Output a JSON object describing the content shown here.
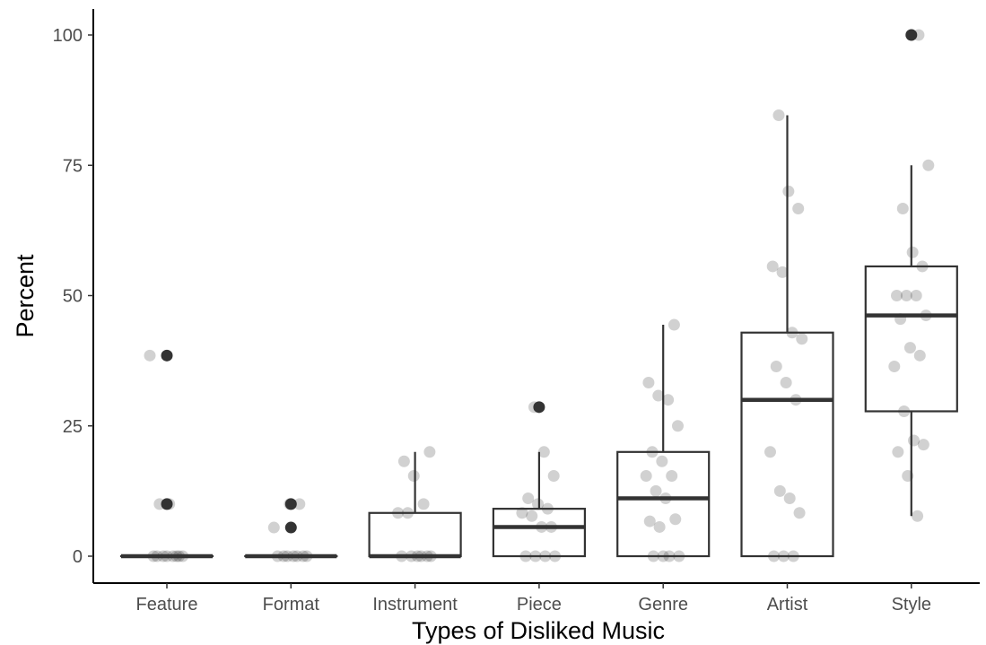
{
  "chart_data": {
    "type": "box",
    "xlabel": "Types of Disliked Music",
    "ylabel": "Percent",
    "ylim": [
      -5,
      105
    ],
    "yticks": [
      0,
      25,
      50,
      75,
      100
    ],
    "categories": [
      "Feature",
      "Format",
      "Instrument",
      "Piece",
      "Genre",
      "Artist",
      "Style"
    ],
    "grid": false,
    "boxes": [
      {
        "category": "Feature",
        "q1": 0,
        "median": 0,
        "q3": 0,
        "whisker_low": 0,
        "whisker_high": 0,
        "outliers": [
          38.5,
          10
        ]
      },
      {
        "category": "Format",
        "q1": 0,
        "median": 0,
        "q3": 0,
        "whisker_low": 0,
        "whisker_high": 0,
        "outliers": [
          10,
          5.5
        ]
      },
      {
        "category": "Instrument",
        "q1": 0,
        "median": 0,
        "q3": 8.3,
        "whisker_low": 0,
        "whisker_high": 20,
        "outliers": []
      },
      {
        "category": "Piece",
        "q1": 0,
        "median": 5.6,
        "q3": 9.1,
        "whisker_low": 0,
        "whisker_high": 20,
        "outliers": [
          28.6
        ]
      },
      {
        "category": "Genre",
        "q1": 0,
        "median": 11.1,
        "q3": 20,
        "whisker_low": 0,
        "whisker_high": 44.4,
        "outliers": []
      },
      {
        "category": "Artist",
        "q1": 0,
        "median": 30,
        "q3": 42.9,
        "whisker_low": 0,
        "whisker_high": 84.6,
        "outliers": []
      },
      {
        "category": "Style",
        "q1": 27.8,
        "median": 46.2,
        "q3": 55.6,
        "whisker_low": 7.7,
        "whisker_high": 75,
        "outliers": [
          100
        ]
      }
    ],
    "points": [
      {
        "category": "Feature",
        "values": [
          38.5,
          10,
          10,
          0,
          0,
          0,
          0,
          0,
          0,
          0,
          0
        ]
      },
      {
        "category": "Format",
        "values": [
          10,
          10,
          5.5,
          0,
          0,
          0,
          0,
          0,
          0,
          0
        ]
      },
      {
        "category": "Instrument",
        "values": [
          20,
          18.2,
          15.4,
          10,
          8.3,
          8.3,
          0,
          0,
          0,
          0,
          0,
          0
        ]
      },
      {
        "category": "Piece",
        "values": [
          28.6,
          20,
          15.4,
          11.1,
          10,
          9.1,
          8.3,
          7.7,
          5.6,
          5.6,
          0,
          0,
          0,
          0
        ]
      },
      {
        "category": "Genre",
        "values": [
          44.4,
          33.3,
          30.8,
          30,
          25,
          20,
          18.2,
          15.4,
          15.4,
          12.5,
          11.1,
          7.1,
          6.7,
          5.6,
          0,
          0,
          0,
          0
        ]
      },
      {
        "category": "Artist",
        "values": [
          84.6,
          70,
          66.7,
          55.6,
          54.5,
          42.9,
          41.7,
          36.4,
          33.3,
          30,
          20,
          12.5,
          11.1,
          8.3,
          0,
          0,
          0
        ]
      },
      {
        "category": "Style",
        "values": [
          100,
          75,
          66.7,
          58.3,
          55.6,
          50,
          50,
          50,
          46.2,
          45.5,
          40,
          38.5,
          36.4,
          27.8,
          22.2,
          21.4,
          20,
          15.4,
          7.7
        ]
      }
    ]
  }
}
